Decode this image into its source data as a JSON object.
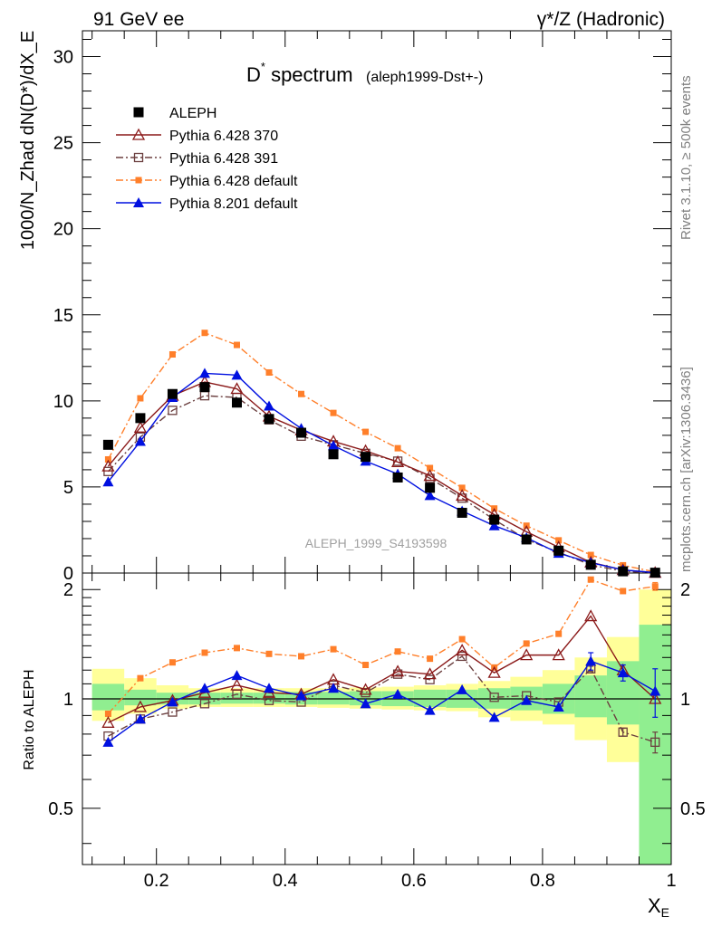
{
  "header": {
    "energy": "91 GeV ee",
    "process": "γ*/Z (Hadronic)"
  },
  "title": {
    "main": "D* spectrum",
    "main_sup": "*",
    "main_base": "D",
    "main_rest": " spectrum",
    "sub": "(aleph1999-Dst+-)"
  },
  "side_labels": {
    "rivet": "Rivet 3.1.10, ≥ 500k events",
    "mcplots": "mcplots.cern.ch [arXiv:1306.3436]"
  },
  "watermark": "ALEPH_1999_S4193598",
  "axes": {
    "ylabel_main": "1000/N_Zhad dN(D*)/dX_E",
    "ylabel_ratio": "Ratio to ALEPH",
    "xlabel": "X_E"
  },
  "colors": {
    "aleph": "#000000",
    "p370": "#8b1a1a",
    "p391": "#6b3f3f",
    "p6def": "#ff7f2a",
    "p8def": "#0010e0",
    "band_inner": "#90ee90",
    "band_outer": "#ffff99"
  },
  "chart_data": [
    {
      "type": "scatter+line",
      "panel": "main",
      "title": "D* spectrum (aleph1999-Dst+-)",
      "xlabel": "X_E",
      "ylabel": "1000/N_Zhad dN(D*)/dX_E",
      "xlim": [
        0.085,
        1.0
      ],
      "ylim": [
        0,
        31.5
      ],
      "yticks": [
        0,
        5,
        10,
        15,
        20,
        25,
        30
      ],
      "xticks": [
        0.2,
        0.4,
        0.6,
        0.8,
        1
      ],
      "legend_position": "top-left",
      "x": [
        0.125,
        0.175,
        0.225,
        0.275,
        0.325,
        0.375,
        0.425,
        0.475,
        0.525,
        0.575,
        0.625,
        0.675,
        0.725,
        0.775,
        0.825,
        0.875,
        0.925,
        0.975
      ],
      "series": [
        {
          "key": "aleph",
          "name": "ALEPH",
          "marker": "filled-square",
          "line": "none",
          "values": [
            7.45,
            9.0,
            10.4,
            10.8,
            9.9,
            8.95,
            8.15,
            6.9,
            6.75,
            5.55,
            4.95,
            3.5,
            3.1,
            1.95,
            1.3,
            0.48,
            0.1,
            0.02
          ]
        },
        {
          "key": "p370",
          "name": "Pythia 6.428 370",
          "marker": "open-triangle",
          "line": "solid",
          "values": [
            6.2,
            8.45,
            10.3,
            11.1,
            10.7,
            9.1,
            8.3,
            7.65,
            7.1,
            6.45,
            5.65,
            4.5,
            3.4,
            2.4,
            1.5,
            0.62,
            0.18,
            0.02
          ]
        },
        {
          "key": "p391",
          "name": "Pythia 6.428 391",
          "marker": "open-square",
          "line": "dashdot",
          "values": [
            5.9,
            7.9,
            9.45,
            10.3,
            10.2,
            8.9,
            7.95,
            7.45,
            6.95,
            6.5,
            5.5,
            4.35,
            3.1,
            1.95,
            1.2,
            0.48,
            0.1,
            0.01
          ]
        },
        {
          "key": "p6def",
          "name": "Pythia 6.428 default",
          "marker": "filled-square-small",
          "line": "dashdot",
          "values": [
            6.6,
            10.15,
            12.7,
            13.95,
            13.25,
            11.65,
            10.4,
            9.3,
            8.2,
            7.25,
            6.1,
            4.95,
            3.75,
            2.75,
            1.9,
            1.05,
            0.45,
            0.06
          ]
        },
        {
          "key": "p8def",
          "name": "Pythia 8.201 default",
          "marker": "filled-triangle",
          "line": "solid",
          "values": [
            5.3,
            7.65,
            10.2,
            11.6,
            11.5,
            9.7,
            8.4,
            7.4,
            6.5,
            5.75,
            4.5,
            3.6,
            2.75,
            2.05,
            1.15,
            0.6,
            0.18,
            0.02
          ]
        }
      ]
    },
    {
      "type": "scatter+line",
      "panel": "ratio",
      "xlabel": "X_E",
      "ylabel": "Ratio to ALEPH",
      "xlim": [
        0.085,
        1.0
      ],
      "ylim": [
        0.35,
        2.22
      ],
      "yticks": [
        0.5,
        1,
        2
      ],
      "reference_line": 1,
      "x": [
        0.125,
        0.175,
        0.225,
        0.275,
        0.325,
        0.375,
        0.425,
        0.475,
        0.525,
        0.575,
        0.625,
        0.675,
        0.725,
        0.775,
        0.825,
        0.875,
        0.925,
        0.975
      ],
      "band_inner": {
        "low": [
          0.93,
          0.96,
          0.965,
          0.965,
          0.97,
          0.97,
          0.965,
          0.965,
          0.96,
          0.955,
          0.95,
          0.945,
          0.94,
          0.93,
          0.91,
          0.89,
          0.85,
          0.35
        ],
        "high": [
          1.1,
          1.06,
          1.04,
          1.04,
          1.04,
          1.04,
          1.045,
          1.045,
          1.05,
          1.05,
          1.06,
          1.06,
          1.07,
          1.08,
          1.1,
          1.16,
          1.27,
          1.6
        ]
      },
      "band_outer": {
        "low": [
          0.87,
          0.91,
          0.94,
          0.95,
          0.95,
          0.95,
          0.95,
          0.945,
          0.94,
          0.935,
          0.93,
          0.925,
          0.89,
          0.87,
          0.85,
          0.77,
          0.67,
          0.35
        ],
        "high": [
          1.21,
          1.14,
          1.09,
          1.07,
          1.07,
          1.07,
          1.07,
          1.07,
          1.075,
          1.08,
          1.09,
          1.1,
          1.12,
          1.15,
          1.2,
          1.3,
          1.48,
          2.0
        ]
      },
      "series": [
        {
          "key": "p370",
          "values": [
            0.86,
            0.95,
            0.99,
            1.04,
            1.09,
            1.04,
            1.03,
            1.13,
            1.06,
            1.19,
            1.17,
            1.36,
            1.18,
            1.32,
            1.32,
            1.69,
            1.2,
            1.0
          ]
        },
        {
          "key": "p391",
          "values": [
            0.79,
            0.88,
            0.92,
            0.97,
            1.03,
            0.99,
            0.98,
            1.09,
            1.04,
            1.17,
            1.13,
            1.31,
            1.01,
            1.02,
            0.98,
            1.21,
            0.81,
            0.76
          ],
          "errors": [
            0,
            0,
            0,
            0,
            0,
            0,
            0,
            0,
            0,
            0,
            0,
            0,
            0,
            0,
            0,
            0.02,
            0.02,
            0.05
          ]
        },
        {
          "key": "p6def",
          "values": [
            0.91,
            1.14,
            1.26,
            1.34,
            1.38,
            1.33,
            1.31,
            1.37,
            1.24,
            1.35,
            1.29,
            1.46,
            1.22,
            1.42,
            1.51,
            2.13,
            1.98,
            2.04
          ],
          "errors": [
            0,
            0,
            0,
            0,
            0,
            0,
            0,
            0,
            0,
            0,
            0,
            0,
            0,
            0,
            0,
            0,
            0,
            0.05
          ]
        },
        {
          "key": "p8def",
          "values": [
            0.76,
            0.88,
            0.98,
            1.07,
            1.16,
            1.07,
            1.02,
            1.07,
            0.97,
            1.03,
            0.93,
            1.06,
            0.89,
            0.99,
            0.95,
            1.27,
            1.18,
            1.05
          ],
          "errors": [
            0,
            0,
            0,
            0,
            0,
            0,
            0,
            0,
            0,
            0,
            0,
            0,
            0,
            0,
            0,
            0.07,
            0.06,
            0.16
          ]
        }
      ]
    }
  ]
}
